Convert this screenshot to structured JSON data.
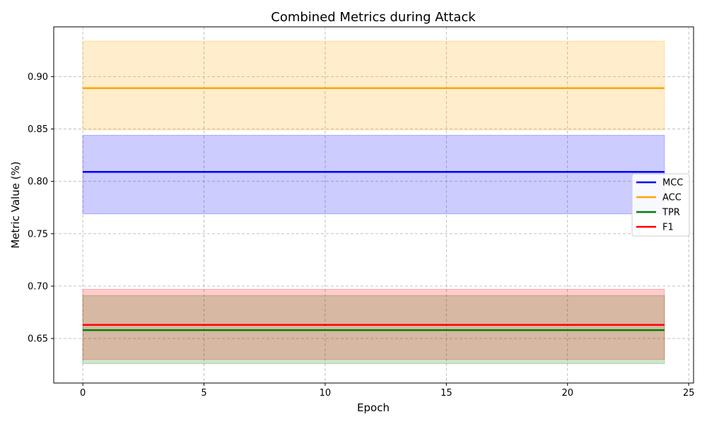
{
  "chart_data": {
    "type": "line",
    "title": "Combined Metrics during Attack",
    "xlabel": "Epoch",
    "ylabel": "Metric Value (%)",
    "xlim": [
      -1.2,
      25.2
    ],
    "ylim": [
      0.6075,
      0.9475
    ],
    "xticks": [
      0,
      5,
      10,
      15,
      20,
      25
    ],
    "yticks": [
      0.65,
      0.7,
      0.75,
      0.8,
      0.85,
      0.9
    ],
    "ytick_labels": [
      "0.65",
      "0.70",
      "0.75",
      "0.80",
      "0.85",
      "0.90"
    ],
    "grid": true,
    "legend_placement": "center-right",
    "x": [
      0,
      24
    ],
    "series": [
      {
        "name": "MCC",
        "color": "#0000ff",
        "values": [
          0.809,
          0.809
        ],
        "band_low": 0.769,
        "band_high": 0.844
      },
      {
        "name": "ACC",
        "color": "#ffa500",
        "values": [
          0.889,
          0.889
        ],
        "band_low": 0.849,
        "band_high": 0.934
      },
      {
        "name": "TPR",
        "color": "#008000",
        "values": [
          0.658,
          0.658
        ],
        "band_low": 0.626,
        "band_high": 0.691
      },
      {
        "name": "F1",
        "color": "#ff0000",
        "values": [
          0.663,
          0.663
        ],
        "band_low": 0.63,
        "band_high": 0.697
      }
    ]
  }
}
